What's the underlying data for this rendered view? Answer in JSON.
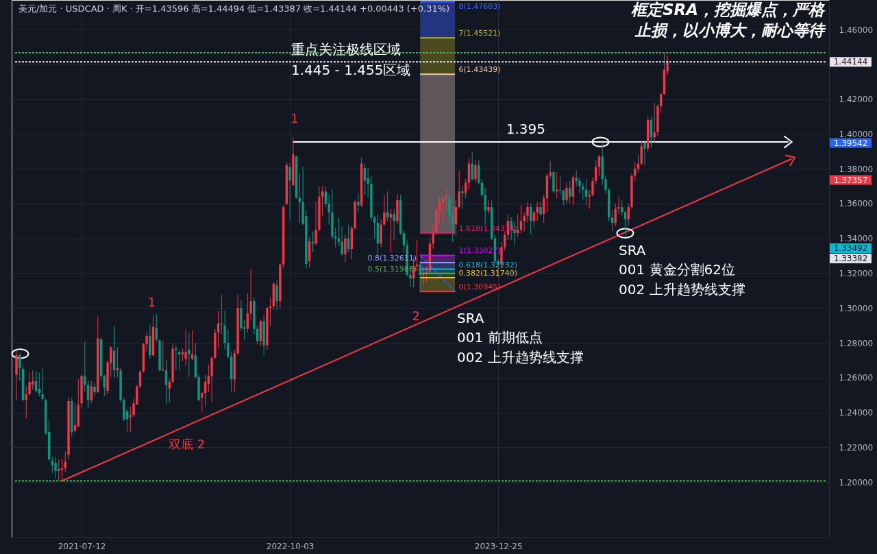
{
  "chart_data": {
    "type": "candlestick",
    "title": "美元/加元 · USDCAD · 周K · 开=1.43596 高=1.44494 低=1.43387 收=1.44144 +0.00443 (+0.31%)",
    "x": [
      "2021-02-22",
      "2021-03-01",
      "2021-03-08",
      "2021-03-15",
      "2021-03-22",
      "2021-03-29",
      "2021-04-05",
      "2021-04-12",
      "2021-04-19",
      "2021-04-26",
      "2021-05-03",
      "2021-05-10",
      "2021-05-17",
      "2021-05-24",
      "2021-05-31",
      "2021-06-07",
      "2021-06-14",
      "2021-06-21",
      "2021-06-28",
      "2021-07-05",
      "2021-07-12",
      "2021-07-19",
      "2021-07-26",
      "2021-08-02",
      "2021-08-09",
      "2021-08-16",
      "2021-08-23",
      "2021-08-30",
      "2021-09-06",
      "2021-09-13",
      "2021-09-20",
      "2021-09-27",
      "2021-10-04",
      "2021-10-11",
      "2021-10-18",
      "2021-10-25",
      "2021-11-01",
      "2021-11-08",
      "2021-11-15",
      "2021-11-22",
      "2021-11-29",
      "2021-12-06",
      "2021-12-13",
      "2021-12-20",
      "2021-12-27",
      "2022-01-03",
      "2022-01-10",
      "2022-01-17",
      "2022-01-24",
      "2022-01-31",
      "2022-02-07",
      "2022-02-14",
      "2022-02-21",
      "2022-02-28",
      "2022-03-07",
      "2022-03-14",
      "2022-03-21",
      "2022-03-28",
      "2022-04-04",
      "2022-04-11",
      "2022-04-18",
      "2022-04-25",
      "2022-05-02",
      "2022-05-09",
      "2022-05-16",
      "2022-05-23",
      "2022-05-30",
      "2022-06-06",
      "2022-06-13",
      "2022-06-20",
      "2022-06-27",
      "2022-07-04",
      "2022-07-11",
      "2022-07-18",
      "2022-07-25",
      "2022-08-01",
      "2022-08-08",
      "2022-08-15",
      "2022-08-22",
      "2022-08-29",
      "2022-09-05",
      "2022-09-12",
      "2022-09-19",
      "2022-09-26",
      "2022-10-03",
      "2022-10-10",
      "2022-10-17",
      "2022-10-24",
      "2022-10-31",
      "2022-11-07",
      "2022-11-14",
      "2022-11-21",
      "2022-11-28",
      "2022-12-05",
      "2022-12-12",
      "2022-12-19",
      "2022-12-26",
      "2023-01-02",
      "2023-01-09",
      "2023-01-16",
      "2023-01-23",
      "2023-01-30",
      "2023-02-06",
      "2023-02-13",
      "2023-02-20",
      "2023-02-27",
      "2023-03-06",
      "2023-03-13",
      "2023-03-20",
      "2023-03-27",
      "2023-04-03",
      "2023-04-10",
      "2023-04-17",
      "2023-04-24",
      "2023-05-01",
      "2023-05-08",
      "2023-05-15",
      "2023-05-22",
      "2023-05-29",
      "2023-06-05",
      "2023-06-12",
      "2023-06-19",
      "2023-06-26",
      "2023-07-03",
      "2023-07-10",
      "2023-07-17",
      "2023-07-24",
      "2023-07-31",
      "2023-08-07",
      "2023-08-14",
      "2023-08-21",
      "2023-08-28",
      "2023-09-04",
      "2023-09-11",
      "2023-09-18",
      "2023-09-25",
      "2023-10-02",
      "2023-10-09",
      "2023-10-16",
      "2023-10-23",
      "2023-10-30",
      "2023-11-06",
      "2023-11-13",
      "2023-11-20",
      "2023-11-27",
      "2023-12-04",
      "2023-12-11",
      "2023-12-18",
      "2023-12-25",
      "2024-01-01",
      "2024-01-08",
      "2024-01-15",
      "2024-01-22",
      "2024-01-29",
      "2024-02-05",
      "2024-02-12",
      "2024-02-19",
      "2024-02-26",
      "2024-03-04",
      "2024-03-11",
      "2024-03-18",
      "2024-03-25",
      "2024-04-01",
      "2024-04-08",
      "2024-04-15",
      "2024-04-22",
      "2024-04-29",
      "2024-05-06",
      "2024-05-13",
      "2024-05-20",
      "2024-05-27",
      "2024-06-03",
      "2024-06-10",
      "2024-06-17",
      "2024-06-24",
      "2024-07-01",
      "2024-07-08",
      "2024-07-15",
      "2024-07-22",
      "2024-07-29",
      "2024-08-05",
      "2024-08-12",
      "2024-08-19",
      "2024-08-26",
      "2024-09-02",
      "2024-09-09",
      "2024-09-16",
      "2024-09-23",
      "2024-09-30",
      "2024-10-07",
      "2024-10-14",
      "2024-10-21",
      "2024-10-28",
      "2024-11-04",
      "2024-11-11",
      "2024-11-18",
      "2024-11-25",
      "2024-12-02",
      "2024-12-09",
      "2024-12-16",
      "2024-12-23"
    ],
    "ohlc": [
      [
        1.2616,
        1.2754,
        1.2471,
        1.273
      ],
      [
        1.273,
        1.2741,
        1.2583,
        1.2655
      ],
      [
        1.2651,
        1.2675,
        1.2465,
        1.2472
      ],
      [
        1.2472,
        1.255,
        1.2366,
        1.2504
      ],
      [
        1.2504,
        1.2629,
        1.25,
        1.2574
      ],
      [
        1.256,
        1.2642,
        1.253,
        1.258
      ],
      [
        1.258,
        1.2636,
        1.2516,
        1.2524
      ],
      [
        1.2537,
        1.2629,
        1.2491,
        1.2511
      ],
      [
        1.2504,
        1.2655,
        1.2465,
        1.2478
      ],
      [
        1.2472,
        1.2478,
        1.2268,
        1.2281
      ],
      [
        1.2288,
        1.2353,
        1.2123,
        1.213
      ],
      [
        1.2123,
        1.2143,
        1.2051,
        1.2097
      ],
      [
        1.211,
        1.2143,
        1.2018,
        1.2064
      ],
      [
        1.2064,
        1.213,
        1.2012,
        1.2077
      ],
      [
        1.207,
        1.2133,
        1.2007,
        1.208
      ],
      [
        1.208,
        1.2176,
        1.2058,
        1.2117
      ],
      [
        1.2156,
        1.2485,
        1.213,
        1.2465
      ],
      [
        1.2465,
        1.2485,
        1.2261,
        1.2288
      ],
      [
        1.2294,
        1.2452,
        1.2281,
        1.2327
      ],
      [
        1.232,
        1.259,
        1.2314,
        1.2445
      ],
      [
        1.2452,
        1.2616,
        1.2426,
        1.2609
      ],
      [
        1.2609,
        1.2806,
        1.2517,
        1.2557
      ],
      [
        1.2557,
        1.2583,
        1.2426,
        1.2472
      ],
      [
        1.2472,
        1.2583,
        1.2452,
        1.255
      ],
      [
        1.2548,
        1.257,
        1.2494,
        1.2517
      ],
      [
        1.2517,
        1.2951,
        1.2511,
        1.2826
      ],
      [
        1.282,
        1.2833,
        1.259,
        1.2609
      ],
      [
        1.2609,
        1.2616,
        1.2494,
        1.2544
      ],
      [
        1.2524,
        1.2698,
        1.2504,
        1.2688
      ],
      [
        1.2682,
        1.278,
        1.2603,
        1.2774
      ],
      [
        1.2754,
        1.2898,
        1.2603,
        1.2642
      ],
      [
        1.2642,
        1.2775,
        1.2603,
        1.2655
      ],
      [
        1.2642,
        1.2655,
        1.2458,
        1.2472
      ],
      [
        1.2472,
        1.2485,
        1.235,
        1.236
      ],
      [
        1.2406,
        1.242,
        1.2288,
        1.236
      ],
      [
        1.2373,
        1.2432,
        1.229,
        1.2386
      ],
      [
        1.2386,
        1.2478,
        1.2373,
        1.2452
      ],
      [
        1.2445,
        1.2557,
        1.2445,
        1.255
      ],
      [
        1.255,
        1.2642,
        1.254,
        1.2636
      ],
      [
        1.2636,
        1.28,
        1.2629,
        1.2793
      ],
      [
        1.2793,
        1.2859,
        1.2754,
        1.2839
      ],
      [
        1.2839,
        1.2905,
        1.2708,
        1.2728
      ],
      [
        1.2728,
        1.2964,
        1.2721,
        1.2892
      ],
      [
        1.2885,
        1.2964,
        1.2806,
        1.282
      ],
      [
        1.2813,
        1.282,
        1.2636,
        1.2642
      ],
      [
        1.2642,
        1.2813,
        1.2636,
        1.2649
      ],
      [
        1.2642,
        1.2701,
        1.245,
        1.2557
      ],
      [
        1.2537,
        1.259,
        1.2458,
        1.2576
      ],
      [
        1.2576,
        1.28,
        1.257,
        1.2767
      ],
      [
        1.2767,
        1.2787,
        1.2642,
        1.276
      ],
      [
        1.2747,
        1.276,
        1.2642,
        1.2734
      ],
      [
        1.2734,
        1.2767,
        1.2695,
        1.2747
      ],
      [
        1.2708,
        1.2878,
        1.2668,
        1.2747
      ],
      [
        1.276,
        1.2859,
        1.2603,
        1.2734
      ],
      [
        1.2708,
        1.2872,
        1.2701,
        1.2734
      ],
      [
        1.2728,
        1.28,
        1.2596,
        1.2603
      ],
      [
        1.2603,
        1.2616,
        1.2465,
        1.2472
      ],
      [
        1.2485,
        1.252,
        1.2403,
        1.2511
      ],
      [
        1.2511,
        1.2616,
        1.2432,
        1.2577
      ],
      [
        1.2563,
        1.2675,
        1.2517,
        1.2609
      ],
      [
        1.2609,
        1.2721,
        1.246,
        1.2714
      ],
      [
        1.2714,
        1.288,
        1.2708,
        1.2859
      ],
      [
        1.2859,
        1.2984,
        1.2768,
        1.2911
      ],
      [
        1.2911,
        1.3076,
        1.285,
        1.2905
      ],
      [
        1.29,
        1.2984,
        1.276,
        1.28
      ],
      [
        1.28,
        1.2878,
        1.271,
        1.272
      ],
      [
        1.272,
        1.275,
        1.2518,
        1.259
      ],
      [
        1.259,
        1.276,
        1.2518,
        1.274
      ],
      [
        1.274,
        1.3078,
        1.273,
        1.3
      ],
      [
        1.3,
        1.3045,
        1.287,
        1.2885
      ],
      [
        1.289,
        1.293,
        1.282,
        1.288
      ],
      [
        1.288,
        1.3085,
        1.286,
        1.297
      ],
      [
        1.297,
        1.3224,
        1.293,
        1.304
      ],
      [
        1.304,
        1.306,
        1.285,
        1.288
      ],
      [
        1.288,
        1.29,
        1.279,
        1.281
      ],
      [
        1.281,
        1.2935,
        1.278,
        1.2925
      ],
      [
        1.2925,
        1.296,
        1.2728,
        1.2785
      ],
      [
        1.2785,
        1.301,
        1.276,
        1.3
      ],
      [
        1.3,
        1.306,
        1.29,
        1.301
      ],
      [
        1.301,
        1.315,
        1.299,
        1.314
      ],
      [
        1.313,
        1.316,
        1.299,
        1.304
      ],
      [
        1.304,
        1.326,
        1.3,
        1.325
      ],
      [
        1.325,
        1.359,
        1.323,
        1.358
      ],
      [
        1.36,
        1.3838,
        1.359,
        1.382
      ],
      [
        1.3811,
        1.3835,
        1.3502,
        1.3732
      ],
      [
        1.3706,
        1.3977,
        1.37,
        1.3883
      ],
      [
        1.387,
        1.3877,
        1.3628,
        1.3634
      ],
      [
        1.3634,
        1.3772,
        1.349,
        1.3608
      ],
      [
        1.3608,
        1.3811,
        1.3476,
        1.3483
      ],
      [
        1.3529,
        1.3562,
        1.3227,
        1.3253
      ],
      [
        1.3269,
        1.341,
        1.3233,
        1.3384
      ],
      [
        1.338,
        1.344,
        1.332,
        1.337
      ],
      [
        1.337,
        1.361,
        1.336,
        1.345
      ],
      [
        1.345,
        1.37,
        1.344,
        1.364
      ],
      [
        1.364,
        1.37,
        1.353,
        1.367
      ],
      [
        1.367,
        1.37,
        1.358,
        1.36
      ],
      [
        1.36,
        1.365,
        1.348,
        1.355
      ],
      [
        1.355,
        1.3685,
        1.34,
        1.341
      ],
      [
        1.341,
        1.346,
        1.335,
        1.34
      ],
      [
        1.34,
        1.352,
        1.3355,
        1.338
      ],
      [
        1.338,
        1.347,
        1.33,
        1.331
      ],
      [
        1.331,
        1.342,
        1.3262,
        1.34
      ],
      [
        1.34,
        1.348,
        1.332,
        1.334
      ],
      [
        1.334,
        1.347,
        1.328,
        1.346
      ],
      [
        1.346,
        1.362,
        1.345,
        1.361
      ],
      [
        1.361,
        1.366,
        1.355,
        1.359
      ],
      [
        1.359,
        1.3862,
        1.358,
        1.383
      ],
      [
        1.3805,
        1.383,
        1.365,
        1.3732
      ],
      [
        1.3746,
        1.3805,
        1.3634,
        1.3713
      ],
      [
        1.3713,
        1.376,
        1.35,
        1.352
      ],
      [
        1.352,
        1.353,
        1.34,
        1.349
      ],
      [
        1.349,
        1.354,
        1.33,
        1.337
      ],
      [
        1.337,
        1.351,
        1.335,
        1.348
      ],
      [
        1.348,
        1.365,
        1.347,
        1.355
      ],
      [
        1.355,
        1.367,
        1.35,
        1.352
      ],
      [
        1.352,
        1.357,
        1.332,
        1.354
      ],
      [
        1.354,
        1.357,
        1.339,
        1.35
      ],
      [
        1.35,
        1.3655,
        1.348,
        1.362
      ],
      [
        1.362,
        1.365,
        1.342,
        1.343
      ],
      [
        1.343,
        1.345,
        1.332,
        1.336
      ],
      [
        1.336,
        1.339,
        1.318,
        1.319
      ],
      [
        1.319,
        1.324,
        1.312,
        1.317
      ],
      [
        1.317,
        1.329,
        1.312,
        1.324
      ],
      [
        1.324,
        1.339,
        1.321,
        1.325
      ],
      [
        1.325,
        1.327,
        1.3093,
        1.319
      ],
      [
        1.319,
        1.324,
        1.313,
        1.32
      ],
      [
        1.32,
        1.324,
        1.315,
        1.321
      ],
      [
        1.321,
        1.34,
        1.32,
        1.337
      ],
      [
        1.337,
        1.348,
        1.334,
        1.344
      ],
      [
        1.344,
        1.358,
        1.342,
        1.356
      ],
      [
        1.356,
        1.364,
        1.349,
        1.361
      ],
      [
        1.361,
        1.364,
        1.349,
        1.363
      ],
      [
        1.363,
        1.369,
        1.357,
        1.364
      ],
      [
        1.364,
        1.365,
        1.348,
        1.353
      ],
      [
        1.353,
        1.356,
        1.338,
        1.348
      ],
      [
        1.348,
        1.362,
        1.341,
        1.358
      ],
      [
        1.358,
        1.379,
        1.357,
        1.367
      ],
      [
        1.367,
        1.37,
        1.357,
        1.366
      ],
      [
        1.366,
        1.374,
        1.363,
        1.372
      ],
      [
        1.372,
        1.386,
        1.368,
        1.383
      ],
      [
        1.383,
        1.3899,
        1.373,
        1.374
      ],
      [
        1.374,
        1.385,
        1.372,
        1.382
      ],
      [
        1.382,
        1.385,
        1.371,
        1.372
      ],
      [
        1.372,
        1.374,
        1.364,
        1.365
      ],
      [
        1.365,
        1.369,
        1.348,
        1.356
      ],
      [
        1.356,
        1.362,
        1.354,
        1.358
      ],
      [
        1.358,
        1.362,
        1.339,
        1.34
      ],
      [
        1.34,
        1.342,
        1.326,
        1.327
      ],
      [
        1.327,
        1.328,
        1.3177,
        1.325
      ],
      [
        1.325,
        1.338,
        1.323,
        1.335
      ],
      [
        1.335,
        1.344,
        1.333,
        1.342
      ],
      [
        1.342,
        1.354,
        1.339,
        1.35
      ],
      [
        1.35,
        1.352,
        1.339,
        1.345
      ],
      [
        1.345,
        1.35,
        1.336,
        1.343
      ],
      [
        1.343,
        1.354,
        1.341,
        1.345
      ],
      [
        1.345,
        1.359,
        1.343,
        1.35
      ],
      [
        1.35,
        1.355,
        1.344,
        1.353
      ],
      [
        1.353,
        1.361,
        1.349,
        1.358
      ],
      [
        1.358,
        1.36,
        1.342,
        1.35
      ],
      [
        1.35,
        1.356,
        1.346,
        1.355
      ],
      [
        1.355,
        1.361,
        1.35,
        1.358
      ],
      [
        1.358,
        1.361,
        1.353,
        1.354
      ],
      [
        1.354,
        1.365,
        1.349,
        1.363
      ],
      [
        1.363,
        1.377,
        1.355,
        1.376
      ],
      [
        1.376,
        1.3846,
        1.374,
        1.378
      ],
      [
        1.378,
        1.379,
        1.366,
        1.367
      ],
      [
        1.367,
        1.378,
        1.363,
        1.368
      ],
      [
        1.368,
        1.376,
        1.365,
        1.3675
      ],
      [
        1.3675,
        1.368,
        1.359,
        1.362
      ],
      [
        1.362,
        1.372,
        1.36,
        1.369
      ],
      [
        1.369,
        1.373,
        1.36,
        1.364
      ],
      [
        1.364,
        1.376,
        1.359,
        1.375
      ],
      [
        1.375,
        1.379,
        1.37,
        1.373
      ],
      [
        1.373,
        1.375,
        1.366,
        1.37
      ],
      [
        1.37,
        1.372,
        1.362,
        1.368
      ],
      [
        1.368,
        1.374,
        1.359,
        1.364
      ],
      [
        1.364,
        1.368,
        1.357,
        1.365
      ],
      [
        1.365,
        1.375,
        1.364,
        1.373
      ],
      [
        1.373,
        1.385,
        1.371,
        1.381
      ],
      [
        1.381,
        1.388,
        1.376,
        1.387
      ],
      [
        1.387,
        1.3946,
        1.371,
        1.374
      ],
      [
        1.374,
        1.376,
        1.366,
        1.368
      ],
      [
        1.368,
        1.369,
        1.35,
        1.352
      ],
      [
        1.352,
        1.356,
        1.344,
        1.349
      ],
      [
        1.349,
        1.36,
        1.347,
        1.357
      ],
      [
        1.357,
        1.364,
        1.354,
        1.358
      ],
      [
        1.358,
        1.362,
        1.353,
        1.355
      ],
      [
        1.355,
        1.356,
        1.342,
        1.351
      ],
      [
        1.351,
        1.36,
        1.347,
        1.358
      ],
      [
        1.358,
        1.377,
        1.357,
        1.376
      ],
      [
        1.376,
        1.384,
        1.373,
        1.38
      ],
      [
        1.38,
        1.388,
        1.378,
        1.383
      ],
      [
        1.383,
        1.396,
        1.382,
        1.393
      ],
      [
        1.395,
        1.396,
        1.382,
        1.3916
      ],
      [
        1.3916,
        1.41,
        1.39,
        1.408
      ],
      [
        1.408,
        1.41,
        1.392,
        1.398
      ],
      [
        1.398,
        1.4178,
        1.395,
        1.401
      ],
      [
        1.401,
        1.417,
        1.399,
        1.416
      ],
      [
        1.416,
        1.424,
        1.412,
        1.423
      ],
      [
        1.423,
        1.4467,
        1.4225,
        1.437
      ],
      [
        1.43596,
        1.44494,
        1.43387,
        1.44144
      ]
    ],
    "colors": [
      "#f23645",
      "#089981",
      "#089981",
      "#f23645",
      "#f23645",
      "#f23645",
      "#089981",
      "#089981",
      "#089981",
      "#089981",
      "#089981",
      "#089981",
      "#089981",
      "#f23645",
      "#f23645",
      "#f23645",
      "#f23645",
      "#089981",
      "#f23645",
      "#f23645",
      "#f23645",
      "#089981",
      "#089981",
      "#f23645",
      "#089981",
      "#f23645",
      "#089981",
      "#089981",
      "#f23645",
      "#f23645",
      "#089981",
      "#f23645",
      "#089981",
      "#089981",
      "#089981",
      "#f23645",
      "#f23645",
      "#f23645",
      "#f23645",
      "#f23645",
      "#f23645",
      "#089981",
      "#f23645",
      "#089981",
      "#089981",
      "#f23645",
      "#089981",
      "#f23645",
      "#f23645",
      "#089981",
      "#089981",
      "#f23645",
      "#f23645",
      "#089981",
      "#f23645",
      "#089981",
      "#089981",
      "#f23645",
      "#f23645",
      "#f23645",
      "#f23645",
      "#f23645",
      "#f23645",
      "#089981",
      "#089981",
      "#089981",
      "#089981",
      "#f23645",
      "#f23645",
      "#089981",
      "#089981",
      "#f23645",
      "#f23645",
      "#089981",
      "#089981",
      "#f23645",
      "#089981",
      "#f23645",
      "#f23645",
      "#f23645",
      "#089981",
      "#f23645",
      "#f23645",
      "#f23645",
      "#089981",
      "#f23645",
      "#089981",
      "#089981",
      "#089981",
      "#089981",
      "#f23645",
      "#089981",
      "#f23645",
      "#f23645",
      "#f23645",
      "#089981",
      "#089981",
      "#089981",
      "#089981",
      "#089981",
      "#089981",
      "#f23645",
      "#089981",
      "#f23645",
      "#f23645",
      "#089981",
      "#f23645",
      "#089981",
      "#089981",
      "#089981",
      "#089981",
      "#089981",
      "#f23645",
      "#f23645",
      "#089981",
      "#f23645",
      "#089981",
      "#f23645",
      "#089981",
      "#089981",
      "#089981",
      "#089981",
      "#f23645",
      "#f23645",
      "#089981",
      "#f23645",
      "#f23645",
      "#f23645",
      "#f23645",
      "#f23645",
      "#f23645",
      "#f23645",
      "#f23645",
      "#089981",
      "#089981",
      "#f23645",
      "#f23645",
      "#089981",
      "#f23645",
      "#f23645",
      "#089981",
      "#f23645",
      "#089981",
      "#089981",
      "#089981",
      "#f23645",
      "#089981",
      "#089981",
      "#089981",
      "#f23645",
      "#f23645",
      "#f23645",
      "#089981",
      "#089981",
      "#f23645",
      "#f23645",
      "#f23645",
      "#f23645",
      "#089981",
      "#f23645",
      "#f23645",
      "#089981",
      "#f23645",
      "#f23645",
      "#f23645",
      "#089981",
      "#f23645",
      "#089981",
      "#089981",
      "#f23645",
      "#089981",
      "#f23645",
      "#089981",
      "#089981",
      "#089981",
      "#089981",
      "#f23645",
      "#f23645",
      "#f23645",
      "#f23645",
      "#089981",
      "#089981",
      "#089981",
      "#089981",
      "#f23645",
      "#f23645",
      "#089981",
      "#089981",
      "#f23645",
      "#f23645",
      "#f23645",
      "#f23645",
      "#f23645",
      "#089981",
      "#f23645",
      "#089981",
      "#f23645",
      "#f23645",
      "#f23645",
      "#f23645",
      "#f23645"
    ],
    "xlim": [
      "2021-02-19",
      "2025-11-28"
    ],
    "ylim": [
      1.1685,
      1.477
    ],
    "xticks": [
      "2021-07-12",
      "2022-10-03",
      "2023-12-25"
    ],
    "yticks": [
      {
        "value": 1.2,
        "label": "1.20000"
      },
      {
        "value": 1.22,
        "label": "1.22000"
      },
      {
        "value": 1.24,
        "label": "1.24000"
      },
      {
        "value": 1.26,
        "label": "1.26000"
      },
      {
        "value": 1.28,
        "label": "1.28000"
      },
      {
        "value": 1.3,
        "label": "1.30000"
      },
      {
        "value": 1.32,
        "label": "1.32000"
      },
      {
        "value": 1.34,
        "label": "1.34000"
      },
      {
        "value": 1.36,
        "label": "1.36000"
      },
      {
        "value": 1.38,
        "label": "1.38000"
      },
      {
        "value": 1.4,
        "label": "1.40000"
      },
      {
        "value": 1.42,
        "label": "1.42000"
      },
      {
        "value": 1.44,
        "label": null
      },
      {
        "value": 1.46,
        "label": "1.46000"
      }
    ],
    "grid": true,
    "series": [
      {
        "type": "line",
        "x": [
          "2021-05-31",
          "2025-09-15"
        ],
        "values": [
          1.2007,
          1.3856
        ],
        "color": "#f23645"
      },
      {
        "type": "line",
        "x": [
          "2022-10-10",
          "2025-09-08"
        ],
        "values": [
          1.39542,
          1.39542
        ],
        "color": "#ffffff"
      },
      {
        "type": "line",
        "x": [
          "2023-07-10",
          "2023-09-23"
        ],
        "values": [
          1.33027,
          1.30945
        ],
        "color": "#2962ff",
        "line_style": "dashed"
      },
      {
        "type": "scatter",
        "x": [
          "2021-03-02",
          "2024-08-01",
          "2024-09-23"
        ],
        "values": [
          1.2737,
          1.3954,
          1.343
        ],
        "color": "#ffffff",
        "marker": "circle"
      }
    ],
    "bands": [
      {
        "axis": "y",
        "from": 1.30945,
        "to": 1.3174,
        "color": "#4d4a22"
      },
      {
        "axis": "y",
        "from": 1.3174,
        "to": 1.31986,
        "color": "#23452f"
      },
      {
        "axis": "y",
        "from": 1.31986,
        "to": 1.32232,
        "color": "#1a4a55"
      },
      {
        "axis": "y",
        "from": 1.32232,
        "to": 1.32611,
        "color": "#2e3a63"
      },
      {
        "axis": "y",
        "from": 1.32611,
        "to": 1.33027,
        "color": "#4a2463"
      },
      {
        "axis": "y",
        "from": 1.34314,
        "to": 1.43439,
        "color": "#5f565b"
      },
      {
        "axis": "y",
        "from": 1.43439,
        "to": 1.45521,
        "color": "#4a4a1f"
      },
      {
        "axis": "y",
        "from": 1.45521,
        "to": 1.47603,
        "color": "#233581"
      }
    ],
    "ref_lines": [
      {
        "axis": "y",
        "value": 1.30945,
        "label": "0(1.30945)",
        "color": "#f23645"
      },
      {
        "axis": "y",
        "value": 1.3174,
        "label": "0.382(1.31740)",
        "color": "#f5b829"
      },
      {
        "axis": "y",
        "value": 1.31986,
        "label": "0.5(1.31986)",
        "color": "#4caf50"
      },
      {
        "axis": "y",
        "value": 1.32232,
        "label": "0.618(1.32232)",
        "color": "#00bcd4"
      },
      {
        "axis": "y",
        "value": 1.32611,
        "label": "0.8(1.32611)",
        "color": "#8c9eff"
      },
      {
        "axis": "y",
        "value": 1.33027,
        "label": "1(1.33027)",
        "color": "#d500f9"
      },
      {
        "axis": "y",
        "value": 1.34314,
        "label": "1.618(1.34314)",
        "color": "#e91e63"
      },
      {
        "axis": "y",
        "value": 1.43439,
        "label": "6(1.43439)",
        "color": "#f2c9a8"
      },
      {
        "axis": "y",
        "value": 1.45521,
        "label": "7(1.45521)",
        "color": "#b5b22a"
      },
      {
        "axis": "y",
        "value": 1.44144,
        "label": "1.44144",
        "color": "#ece4ea",
        "line_style": "dotted"
      },
      {
        "axis": "y",
        "value": 1.4467,
        "color": "#4caf50",
        "line_style": "dotted"
      },
      {
        "axis": "y",
        "value": 1.2007,
        "color": "#4caf50",
        "line_style": "dotted"
      },
      {
        "axis": "y",
        "value": 1.47603,
        "label": "8(1.47603)",
        "color": "#3a6bff"
      }
    ],
    "annotations": [
      "框定SRA，挖掘爆点，严格止损，以小博大，耐心等待",
      "重点关注极线区域\n1.445 - 1.455区域",
      {
        "text": "1.395",
        "x": "2024-01-11",
        "y": 1.39542
      },
      {
        "text": "1",
        "x": "2022-10-10",
        "y": 1.3977
      },
      {
        "text": "1",
        "x": "2021-12-13",
        "y": 1.2964
      },
      {
        "text": "2",
        "x": "2023-07-10",
        "y": 1.3093
      },
      "双底  2",
      "SRA\n001 前期低点\n002 上升趋势线支撑",
      "SRA\n001 黄金分割62位\n002 上升趋势线支撑",
      "1.39542",
      "1.37357",
      "1.33492",
      "1.33382"
    ]
  }
}
